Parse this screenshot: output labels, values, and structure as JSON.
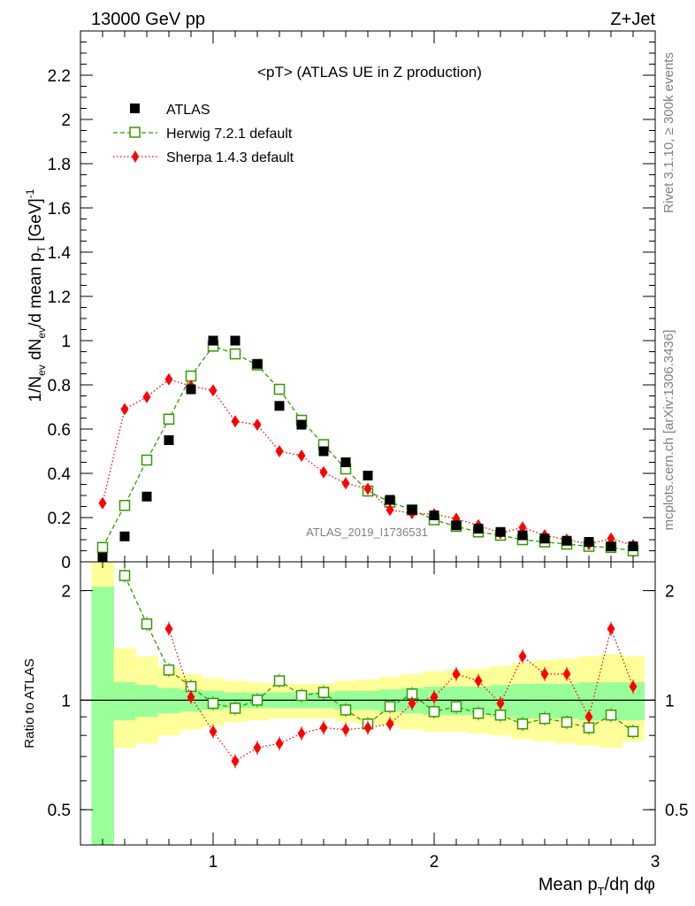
{
  "header": {
    "left": "13000 GeV pp",
    "right": "Z+Jet"
  },
  "side_text": {
    "rivet": "Rivet 3.1.10, ≥ 300k events",
    "mcplots": "mcplots.cern.ch [arXiv:1306.3436]"
  },
  "chart_data": [
    {
      "type": "scatter",
      "panel": "main",
      "title": "<pT> (ATLAS UE in Z production)",
      "ylabel": "1/N_ev dN_ev/d mean p_T [GeV]^-1",
      "watermark": "ATLAS_2019_I1736531",
      "xlim": [
        0.4,
        3.0
      ],
      "ylim": [
        0,
        2.4
      ],
      "xticks": [
        "1",
        "2",
        "3"
      ],
      "yticks": [
        "0",
        "0.2",
        "0.4",
        "0.6",
        "0.8",
        "1",
        "1.2",
        "1.4",
        "1.6",
        "1.8",
        "2",
        "2.2"
      ],
      "grid": false,
      "legend_position": "top-left",
      "series": [
        {
          "name": "ATLAS",
          "marker": "filled-square",
          "color": "#000000",
          "x": [
            0.5,
            0.6,
            0.7,
            0.8,
            0.9,
            1.0,
            1.1,
            1.2,
            1.3,
            1.4,
            1.5,
            1.6,
            1.7,
            1.8,
            1.9,
            2.0,
            2.1,
            2.2,
            2.3,
            2.4,
            2.5,
            2.6,
            2.7,
            2.8,
            2.9
          ],
          "y": [
            0.02,
            0.115,
            0.295,
            0.55,
            0.78,
            1.0,
            1.0,
            0.895,
            0.705,
            0.62,
            0.5,
            0.45,
            0.39,
            0.28,
            0.235,
            0.21,
            0.165,
            0.15,
            0.135,
            0.12,
            0.105,
            0.095,
            0.09,
            0.07,
            0.07
          ]
        },
        {
          "name": "Herwig 7.2.1 default",
          "marker": "open-square",
          "line": "dashed",
          "color": "#339900",
          "x": [
            0.5,
            0.6,
            0.7,
            0.8,
            0.9,
            1.0,
            1.1,
            1.2,
            1.3,
            1.4,
            1.5,
            1.6,
            1.7,
            1.8,
            1.9,
            2.0,
            2.1,
            2.2,
            2.3,
            2.4,
            2.5,
            2.6,
            2.7,
            2.8,
            2.9
          ],
          "y": [
            0.065,
            0.255,
            0.46,
            0.645,
            0.84,
            0.975,
            0.94,
            0.89,
            0.78,
            0.64,
            0.53,
            0.42,
            0.32,
            0.27,
            0.235,
            0.19,
            0.16,
            0.135,
            0.12,
            0.1,
            0.09,
            0.08,
            0.07,
            0.065,
            0.05
          ]
        },
        {
          "name": "Sherpa 1.4.3 default",
          "marker": "filled-diamond",
          "line": "dotted",
          "color": "#ff0000",
          "x": [
            0.5,
            0.6,
            0.7,
            0.8,
            0.9,
            1.0,
            1.1,
            1.2,
            1.3,
            1.4,
            1.5,
            1.6,
            1.7,
            1.8,
            1.9,
            2.0,
            2.1,
            2.2,
            2.3,
            2.4,
            2.5,
            2.6,
            2.7,
            2.8,
            2.9
          ],
          "y": [
            0.265,
            0.69,
            0.745,
            0.825,
            0.795,
            0.775,
            0.635,
            0.62,
            0.5,
            0.48,
            0.405,
            0.355,
            0.33,
            0.235,
            0.22,
            0.215,
            0.195,
            0.165,
            0.13,
            0.155,
            0.12,
            0.1,
            0.08,
            0.105,
            0.075
          ]
        }
      ]
    },
    {
      "type": "scatter",
      "panel": "ratio",
      "xlabel": "Mean p_T/dη dφ",
      "ylabel": "Ratio to ATLAS",
      "xlim": [
        0.4,
        3.0
      ],
      "ylim": [
        0.4,
        2.4
      ],
      "yscale": "log",
      "xticks": [
        "1",
        "2",
        "3"
      ],
      "yticks": [
        "0.5",
        "1",
        "2"
      ],
      "reference_line": 1,
      "data_uncertainty_bands": {
        "x_edges": [
          0.45,
          0.55,
          0.65,
          0.75,
          0.85,
          0.95,
          1.05,
          1.15,
          1.25,
          1.35,
          1.45,
          1.55,
          1.65,
          1.75,
          1.85,
          1.95,
          2.05,
          2.15,
          2.25,
          2.35,
          2.45,
          2.55,
          2.65,
          2.75,
          2.85,
          2.95
        ],
        "inner_lo": [
          0.3,
          0.88,
          0.9,
          0.92,
          0.93,
          0.94,
          0.95,
          0.95,
          0.95,
          0.95,
          0.95,
          0.94,
          0.94,
          0.93,
          0.92,
          0.91,
          0.91,
          0.91,
          0.9,
          0.89,
          0.89,
          0.89,
          0.88,
          0.88,
          0.88
        ],
        "inner_hi": [
          2.05,
          1.12,
          1.1,
          1.08,
          1.07,
          1.06,
          1.05,
          1.05,
          1.05,
          1.05,
          1.05,
          1.06,
          1.06,
          1.07,
          1.08,
          1.09,
          1.09,
          1.09,
          1.1,
          1.11,
          1.11,
          1.11,
          1.12,
          1.12,
          1.12
        ],
        "outer_lo": [
          0.3,
          0.74,
          0.76,
          0.8,
          0.83,
          0.85,
          0.87,
          0.88,
          0.89,
          0.89,
          0.89,
          0.87,
          0.86,
          0.85,
          0.83,
          0.82,
          0.82,
          0.81,
          0.8,
          0.78,
          0.77,
          0.76,
          0.75,
          0.74,
          0.77
        ],
        "outer_hi": [
          2.4,
          1.39,
          1.32,
          1.23,
          1.18,
          1.15,
          1.13,
          1.12,
          1.11,
          1.11,
          1.11,
          1.13,
          1.14,
          1.16,
          1.18,
          1.2,
          1.21,
          1.22,
          1.24,
          1.27,
          1.29,
          1.3,
          1.32,
          1.34,
          1.32
        ],
        "inner_color": "#99ff99",
        "outer_color": "#ffff99"
      },
      "series": [
        {
          "name": "Herwig 7.2.1 default",
          "marker": "open-square",
          "line": "dashed",
          "color": "#339900",
          "x": [
            0.6,
            0.7,
            0.8,
            0.9,
            1.0,
            1.1,
            1.2,
            1.3,
            1.4,
            1.5,
            1.6,
            1.7,
            1.8,
            1.9,
            2.0,
            2.1,
            2.2,
            2.3,
            2.4,
            2.5,
            2.6,
            2.7,
            2.8,
            2.9
          ],
          "y": [
            2.2,
            1.62,
            1.21,
            1.09,
            0.98,
            0.95,
            1.0,
            1.13,
            1.03,
            1.05,
            0.94,
            0.86,
            0.96,
            1.04,
            0.93,
            0.96,
            0.92,
            0.91,
            0.86,
            0.89,
            0.87,
            0.84,
            0.91,
            0.82
          ]
        },
        {
          "name": "Sherpa 1.4.3 default",
          "marker": "filled-diamond",
          "line": "dotted",
          "color": "#ff0000",
          "x": [
            0.8,
            0.9,
            1.0,
            1.1,
            1.2,
            1.3,
            1.4,
            1.5,
            1.6,
            1.7,
            1.8,
            1.9,
            2.0,
            2.1,
            2.2,
            2.3,
            2.4,
            2.5,
            2.6,
            2.7,
            2.8,
            2.9
          ],
          "y": [
            1.57,
            1.02,
            0.82,
            0.68,
            0.74,
            0.76,
            0.81,
            0.84,
            0.83,
            0.84,
            0.86,
            0.98,
            1.02,
            1.18,
            1.13,
            0.98,
            1.32,
            1.18,
            1.18,
            0.9,
            1.57,
            1.09
          ]
        }
      ]
    }
  ]
}
